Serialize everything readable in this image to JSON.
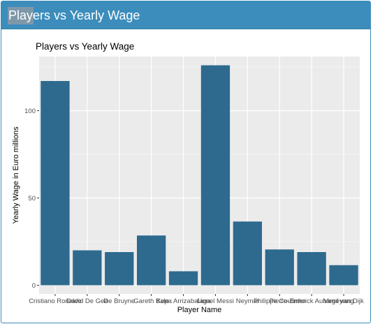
{
  "panel": {
    "title": "Players vs Yearly Wage"
  },
  "chart_data": {
    "type": "bar",
    "title": "Players vs Yearly Wage",
    "xlabel": "Player Name",
    "ylabel": "Yearly Wage in Euro millions",
    "categories": [
      "Cristiano Ronaldo",
      "David De Gea",
      "De Bruyne",
      "Gareth Bale",
      "Kepa Arrizabalaga",
      "Lionel Messi",
      "Neymar",
      "Philippe Coutinho",
      "Pierre-Emerick Aubameyang",
      "Virgil van Dijk"
    ],
    "values": [
      117,
      20,
      19,
      28.5,
      8,
      126,
      36.5,
      20.5,
      19,
      11.5
    ],
    "yticks": [
      0,
      50,
      100
    ],
    "ylim": [
      -5,
      131
    ],
    "grid": true,
    "bar_color": "#2e6a8e",
    "panel_bg": "#ebebeb",
    "grid_color": "#ffffff"
  }
}
